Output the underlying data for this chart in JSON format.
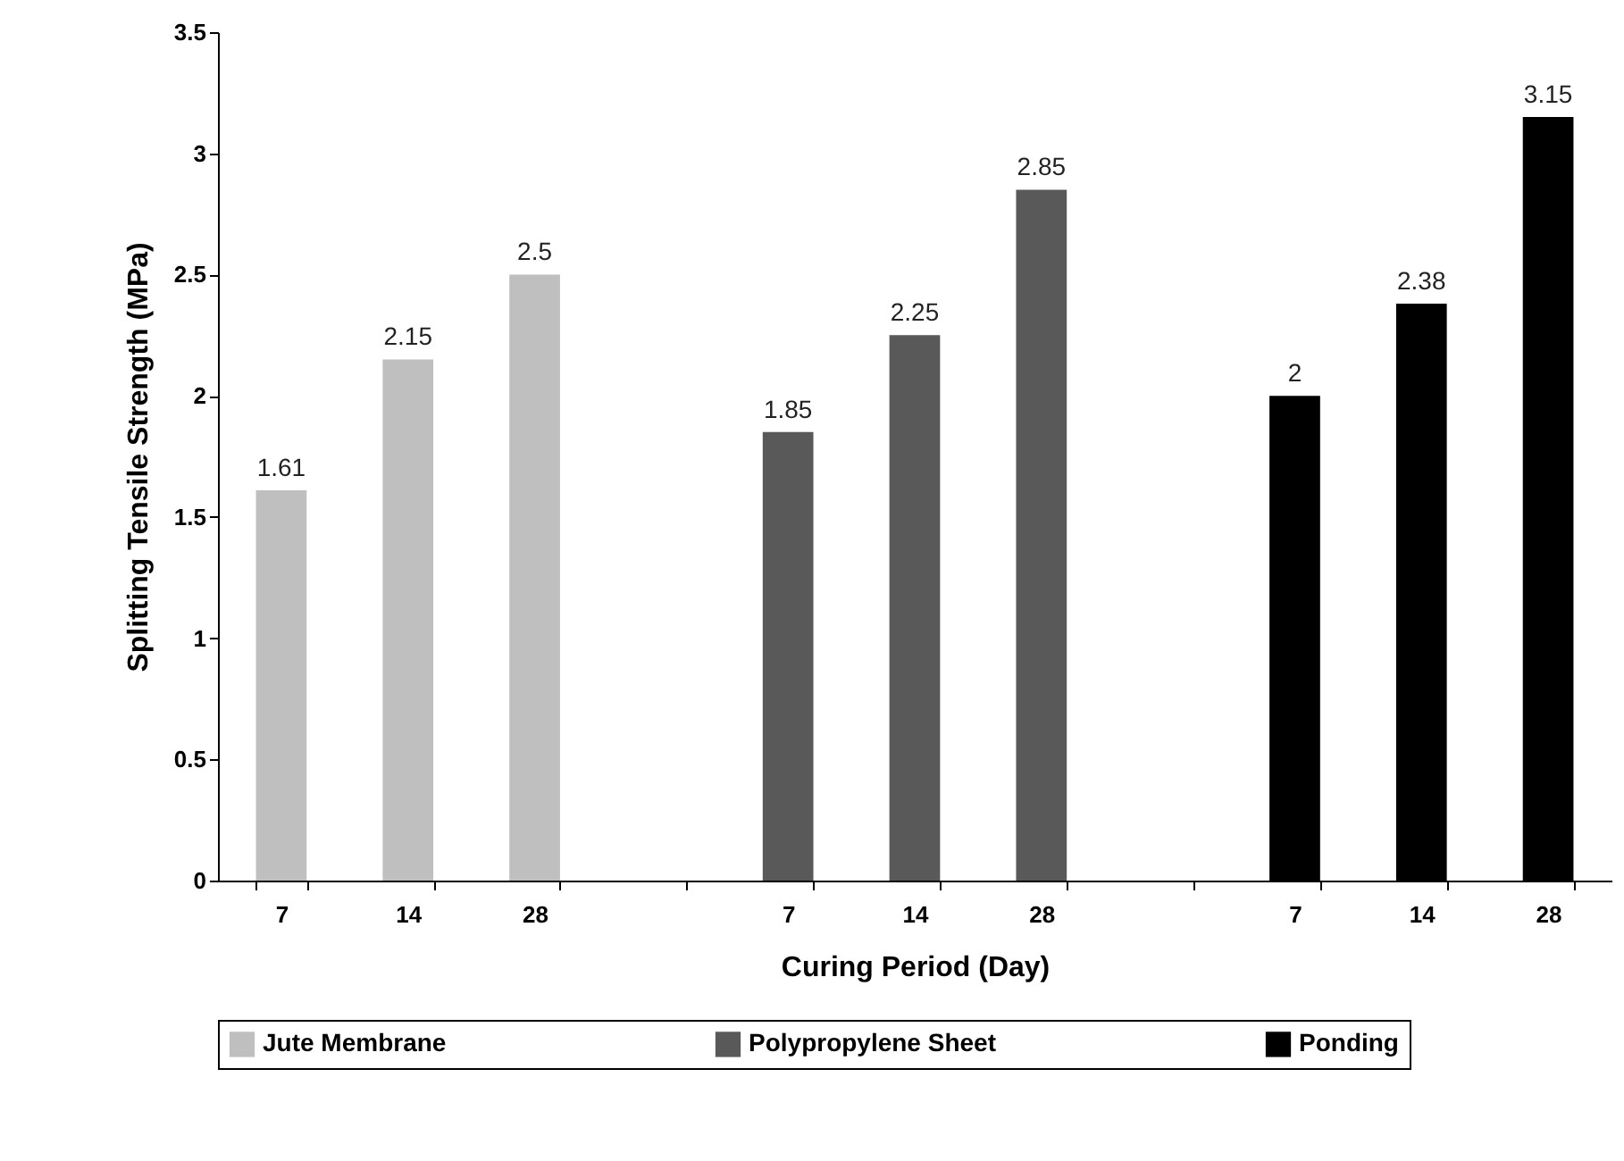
{
  "chart_data": {
    "type": "bar",
    "xlabel": "Curing Period (Day)",
    "ylabel": "Splitting Tensile Strength (MPa)",
    "categories": [
      "7",
      "14",
      "28",
      null,
      "7",
      "14",
      "28",
      null,
      "7",
      "14",
      "28"
    ],
    "series": [
      {
        "name": "Jute Membrane",
        "color": "#bfbfbf",
        "values": [
          1.61,
          2.15,
          2.5,
          null,
          null,
          null,
          null,
          null,
          null,
          null,
          null
        ]
      },
      {
        "name": "Polypropylene Sheet",
        "color": "#595959",
        "values": [
          null,
          null,
          null,
          null,
          1.85,
          2.25,
          2.85,
          null,
          null,
          null,
          null
        ]
      },
      {
        "name": "Ponding",
        "color": "#000000",
        "values": [
          null,
          null,
          null,
          null,
          null,
          null,
          null,
          null,
          2,
          2.38,
          3.15
        ]
      }
    ],
    "ylim": [
      0,
      3.5
    ],
    "yticks": [
      0,
      0.5,
      1,
      1.5,
      2,
      2.5,
      3,
      3.5
    ],
    "grid": false,
    "legend": "bottom",
    "data_labels": true
  }
}
